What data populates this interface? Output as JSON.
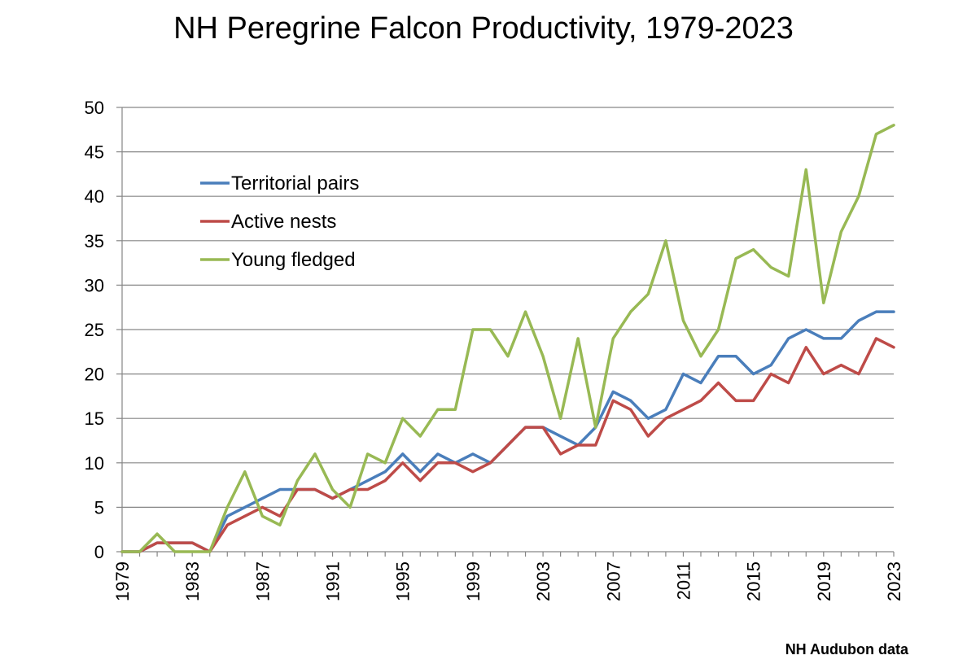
{
  "title": "NH Peregrine Falcon Productivity, 1979-2023",
  "source_note": "NH Audubon data",
  "chart_data": {
    "type": "line",
    "title": "NH Peregrine Falcon Productivity, 1979-2023",
    "xlabel": "",
    "ylabel": "",
    "x": [
      1979,
      1980,
      1981,
      1982,
      1983,
      1984,
      1985,
      1986,
      1987,
      1988,
      1989,
      1990,
      1991,
      1992,
      1993,
      1994,
      1995,
      1996,
      1997,
      1998,
      1999,
      2000,
      2001,
      2002,
      2003,
      2004,
      2005,
      2006,
      2007,
      2008,
      2009,
      2010,
      2011,
      2012,
      2013,
      2014,
      2015,
      2016,
      2017,
      2018,
      2019,
      2020,
      2021,
      2022,
      2023
    ],
    "x_tick_labels": [
      "1979",
      "1983",
      "1987",
      "1991",
      "1995",
      "1999",
      "2003",
      "2007",
      "2011",
      "2015",
      "2019",
      "2023"
    ],
    "xlim": [
      1979,
      2023
    ],
    "ylim": [
      0,
      50
    ],
    "y_ticks": [
      "0",
      "5",
      "10",
      "15",
      "20",
      "25",
      "30",
      "35",
      "40",
      "45",
      "50"
    ],
    "grid": "horizontal",
    "legend_position": "upper-left",
    "series": [
      {
        "name": "Territorial pairs",
        "color": "#4a7ebb",
        "values": [
          0,
          0,
          1,
          1,
          1,
          0,
          4,
          5,
          6,
          7,
          7,
          7,
          6,
          7,
          8,
          9,
          11,
          9,
          11,
          10,
          11,
          10,
          12,
          14,
          14,
          13,
          12,
          14,
          18,
          17,
          15,
          16,
          20,
          19,
          22,
          22,
          20,
          21,
          24,
          25,
          24,
          24,
          26,
          27,
          27
        ]
      },
      {
        "name": "Active nests",
        "color": "#be4b48",
        "values": [
          0,
          0,
          1,
          1,
          1,
          0,
          3,
          4,
          5,
          4,
          7,
          7,
          6,
          7,
          7,
          8,
          10,
          8,
          10,
          10,
          9,
          10,
          12,
          14,
          14,
          11,
          12,
          12,
          17,
          16,
          13,
          15,
          16,
          17,
          19,
          17,
          17,
          20,
          19,
          23,
          20,
          21,
          20,
          24,
          23
        ]
      },
      {
        "name": "Young fledged",
        "color": "#98b954",
        "values": [
          0,
          0,
          2,
          0,
          0,
          0,
          5,
          9,
          4,
          3,
          8,
          11,
          7,
          5,
          11,
          10,
          15,
          13,
          16,
          16,
          25,
          25,
          22,
          27,
          22,
          15,
          24,
          14,
          24,
          27,
          29,
          35,
          26,
          22,
          25,
          33,
          34,
          32,
          31,
          43,
          28,
          36,
          40,
          47,
          48
        ]
      }
    ]
  }
}
